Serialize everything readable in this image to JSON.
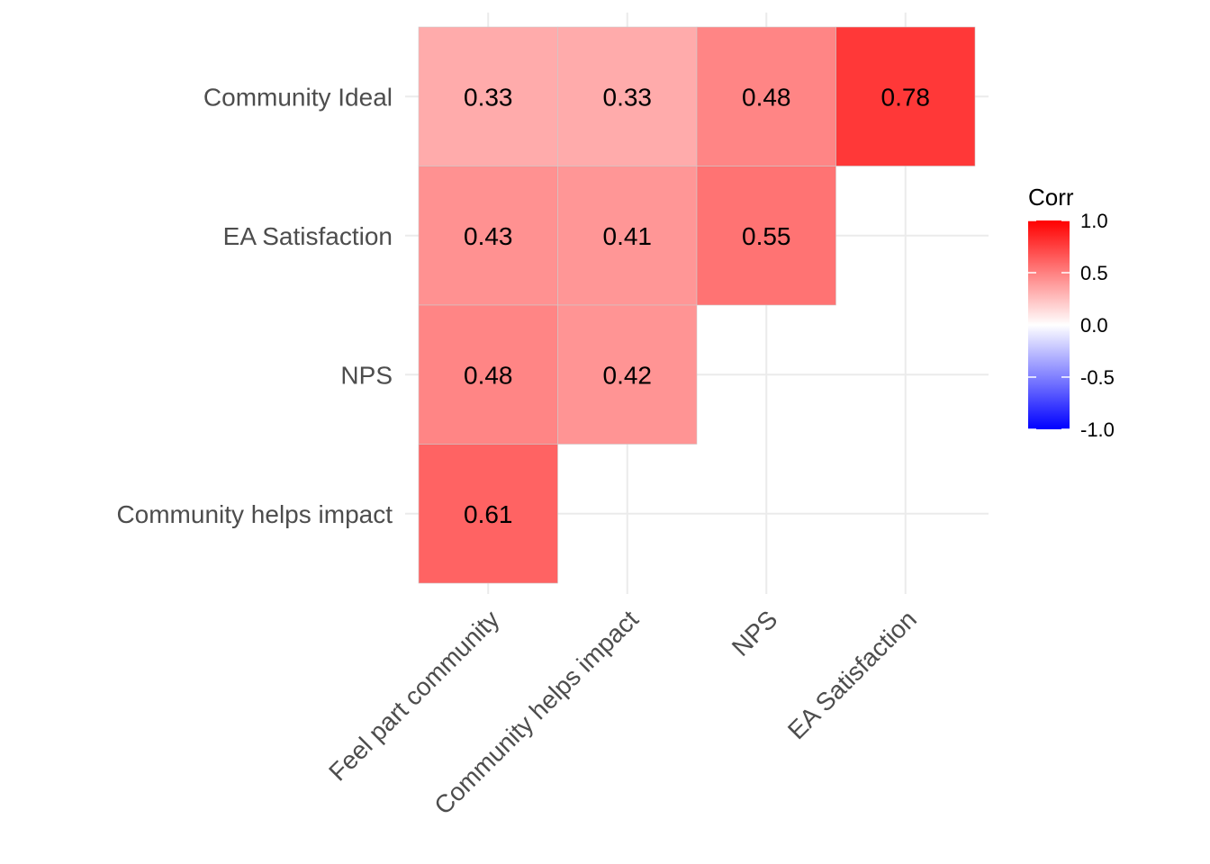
{
  "chart_data": {
    "type": "heatmap",
    "title": "",
    "xlabel": "",
    "ylabel": "",
    "x_categories": [
      "Feel part community",
      "Community helps impact",
      "NPS",
      "EA Satisfaction"
    ],
    "y_categories": [
      "Community helps impact",
      "NPS",
      "EA Satisfaction",
      "Community Ideal"
    ],
    "cells": [
      {
        "x": "Feel part community",
        "y": "Community Ideal",
        "value": 0.33,
        "label": "0.33"
      },
      {
        "x": "Community helps impact",
        "y": "Community Ideal",
        "value": 0.33,
        "label": "0.33"
      },
      {
        "x": "NPS",
        "y": "Community Ideal",
        "value": 0.48,
        "label": "0.48"
      },
      {
        "x": "EA Satisfaction",
        "y": "Community Ideal",
        "value": 0.78,
        "label": "0.78"
      },
      {
        "x": "Feel part community",
        "y": "EA Satisfaction",
        "value": 0.43,
        "label": "0.43"
      },
      {
        "x": "Community helps impact",
        "y": "EA Satisfaction",
        "value": 0.41,
        "label": "0.41"
      },
      {
        "x": "NPS",
        "y": "EA Satisfaction",
        "value": 0.55,
        "label": "0.55"
      },
      {
        "x": "Feel part community",
        "y": "NPS",
        "value": 0.48,
        "label": "0.48"
      },
      {
        "x": "Community helps impact",
        "y": "NPS",
        "value": 0.42,
        "label": "0.42"
      },
      {
        "x": "Feel part community",
        "y": "Community helps impact",
        "value": 0.61,
        "label": "0.61"
      }
    ],
    "legend": {
      "title": "Corr",
      "ticks": [
        "1.0",
        "0.5",
        "0.0",
        "-0.5",
        "-1.0"
      ],
      "tick_values": [
        1.0,
        0.5,
        0.0,
        -0.5,
        -1.0
      ],
      "range": [
        -1,
        1
      ],
      "placement": "right"
    },
    "colors": {
      "low": "#0000ff",
      "mid": "#ffffff",
      "high": "#ff0000",
      "grid": "#ebebeb",
      "cell_border": "#cccccc"
    },
    "grid": true
  }
}
